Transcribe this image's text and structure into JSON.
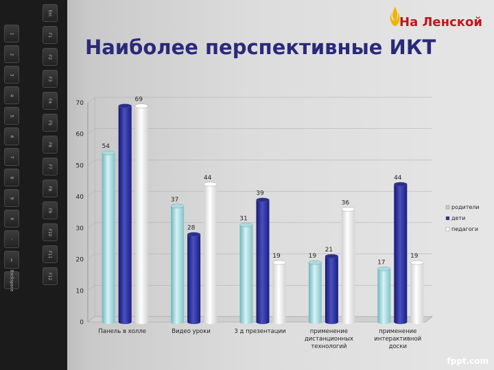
{
  "page": {
    "title": "Наиболее перспективные ИКТ",
    "watermark": "fppt.com"
  },
  "logo": {
    "text": "На Ленской"
  },
  "colors": {
    "title": "#2a2a7a",
    "logo": "#c0161c"
  },
  "chart_data": {
    "type": "bar",
    "categories": [
      [
        "Панель в холле"
      ],
      [
        "Видео уроки"
      ],
      [
        "3 д презентации"
      ],
      [
        "применение",
        "дистанционных",
        "технологий"
      ],
      [
        "применение",
        "интерактивной",
        "доски"
      ]
    ],
    "series": [
      {
        "name": "родители",
        "color": "#a8dbe0",
        "values": [
          54,
          37,
          31,
          19,
          17
        ]
      },
      {
        "name": "дети",
        "color": "#2a2e8e",
        "values": [
          69,
          28,
          39,
          21,
          44
        ]
      },
      {
        "name": "педагоги",
        "color": "#ffffff",
        "values": [
          69,
          44,
          19,
          36,
          19
        ]
      }
    ],
    "data_labels": [
      [
        54,
        37,
        31,
        19,
        17
      ],
      [
        null,
        28,
        39,
        21,
        44
      ],
      [
        69,
        44,
        19,
        36,
        19
      ]
    ],
    "yticks": [
      0,
      10,
      20,
      30,
      40,
      50,
      60,
      70
    ],
    "ylim": [
      0,
      70
    ],
    "grid": true,
    "legend": "right"
  }
}
